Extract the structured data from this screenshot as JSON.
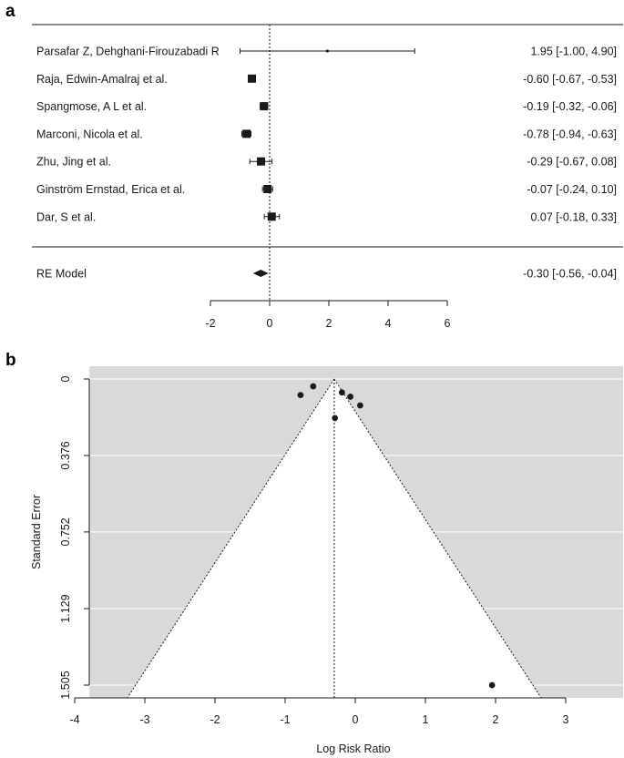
{
  "chart_data": [
    {
      "panel": "a",
      "type": "forest",
      "studies": [
        {
          "label": "Parsafar Z, Dehghani-Firouzabadi R",
          "estimate": 1.95,
          "lower": -1.0,
          "upper": 4.9,
          "text": "1.95 [-1.00,  4.90]"
        },
        {
          "label": "Raja, Edwin-Amalraj et al.",
          "estimate": -0.6,
          "lower": -0.67,
          "upper": -0.53,
          "text": "-0.60 [-0.67, -0.53]"
        },
        {
          "label": "Spangmose, A L et al.",
          "estimate": -0.19,
          "lower": -0.32,
          "upper": -0.06,
          "text": "-0.19 [-0.32, -0.06]"
        },
        {
          "label": "Marconi, Nicola et al.",
          "estimate": -0.78,
          "lower": -0.94,
          "upper": -0.63,
          "text": "-0.78 [-0.94, -0.63]"
        },
        {
          "label": "Zhu, Jing et al.",
          "estimate": -0.29,
          "lower": -0.67,
          "upper": 0.08,
          "text": "-0.29 [-0.67,  0.08]"
        },
        {
          "label": "Ginström Ernstad, Erica et al.",
          "estimate": -0.07,
          "lower": -0.24,
          "upper": 0.1,
          "text": "-0.07 [-0.24,  0.10]"
        },
        {
          "label": "Dar, S et al.",
          "estimate": 0.07,
          "lower": -0.18,
          "upper": 0.33,
          "text": "0.07 [-0.18,  0.33]"
        }
      ],
      "summary": {
        "label": "RE Model",
        "estimate": -0.3,
        "lower": -0.56,
        "upper": -0.04,
        "text": "-0.30 [-0.56, -0.04]"
      },
      "x_ticks": [
        -2,
        0,
        2,
        4,
        6
      ],
      "x_tick_labels": [
        "-2",
        "0",
        "2",
        "4",
        "6"
      ],
      "reference_line": 0
    },
    {
      "panel": "b",
      "type": "scatter",
      "subtype": "funnel",
      "xlabel": "Log Risk Ratio",
      "ylabel": "Standard Error",
      "xlim": [
        -4.1,
        3.5
      ],
      "ylim": [
        1.505,
        0
      ],
      "x_ticks": [
        -4,
        -3,
        -2,
        -1,
        0,
        1,
        2,
        3
      ],
      "x_tick_labels": [
        "-4",
        "-3",
        "-2",
        "-1",
        "0",
        "1",
        "2",
        "3"
      ],
      "y_ticks": [
        0,
        0.376,
        0.752,
        1.129,
        1.505
      ],
      "y_tick_labels": [
        "0",
        "0.376",
        "0.752",
        "1.129",
        "1.505"
      ],
      "center": -0.3,
      "funnel_bottom_se": 1.505,
      "funnel_z": 1.96,
      "points": [
        {
          "x": 1.95,
          "se": 1.505
        },
        {
          "x": -0.6,
          "se": 0.036
        },
        {
          "x": -0.19,
          "se": 0.066
        },
        {
          "x": -0.78,
          "se": 0.079
        },
        {
          "x": -0.29,
          "se": 0.192
        },
        {
          "x": -0.07,
          "se": 0.087
        },
        {
          "x": 0.07,
          "se": 0.13
        }
      ],
      "grid": true,
      "background": "#d9d9d9"
    }
  ]
}
